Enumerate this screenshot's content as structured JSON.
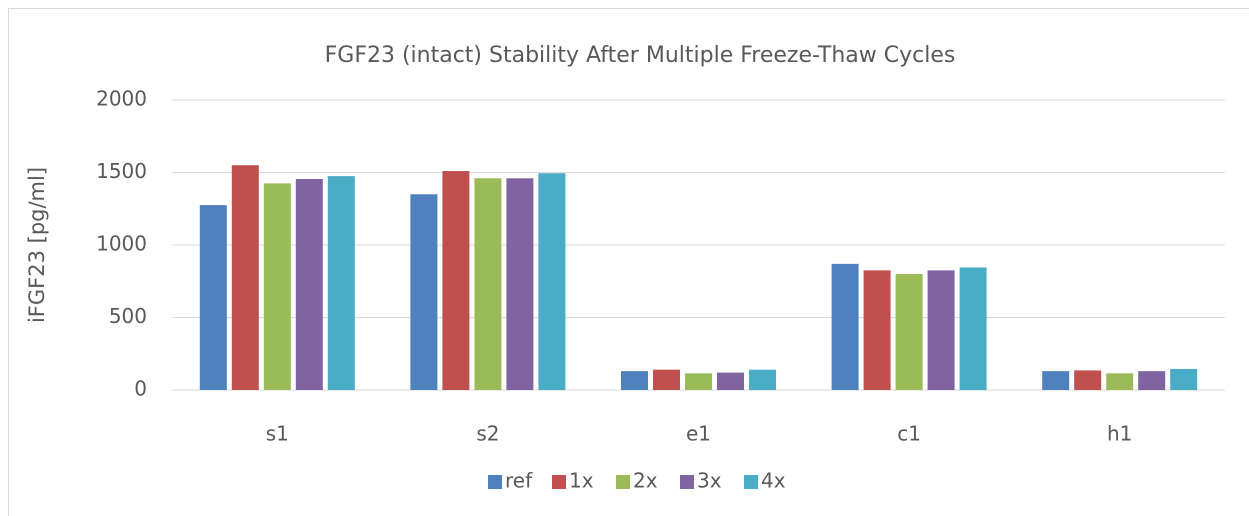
{
  "chart_data": {
    "type": "bar",
    "title": "FGF23 (intact) Stability After Multiple Freeze-Thaw Cycles",
    "y_label": "iFGF23 [pg/ml]",
    "categories": [
      "s1",
      "s2",
      "e1",
      "c1",
      "h1"
    ],
    "series": [
      {
        "name": "ref",
        "color": "#4f81bd",
        "values": [
          1275,
          1350,
          130,
          870,
          130
        ]
      },
      {
        "name": "1x",
        "color": "#c0504d",
        "values": [
          1550,
          1510,
          140,
          825,
          135
        ]
      },
      {
        "name": "2x",
        "color": "#9bbb59",
        "values": [
          1425,
          1460,
          115,
          800,
          115
        ]
      },
      {
        "name": "3x",
        "color": "#8064a2",
        "values": [
          1455,
          1460,
          120,
          825,
          130
        ]
      },
      {
        "name": "4x",
        "color": "#4bacc6",
        "values": [
          1475,
          1495,
          140,
          845,
          145
        ]
      }
    ],
    "ylim": [
      0,
      2000
    ],
    "yticks": [
      0,
      500,
      1000,
      1500,
      2000
    ],
    "grid": true,
    "legend": "bottom"
  }
}
